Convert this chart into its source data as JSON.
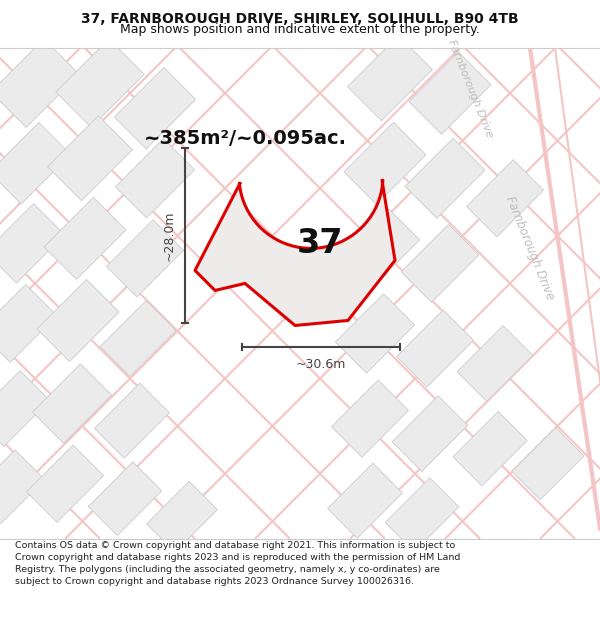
{
  "title_line1": "37, FARNBOROUGH DRIVE, SHIRLEY, SOLIHULL, B90 4TB",
  "title_line2": "Map shows position and indicative extent of the property.",
  "footer_text": "Contains OS data © Crown copyright and database right 2021. This information is subject to Crown copyright and database rights 2023 and is reproduced with the permission of HM Land Registry. The polygons (including the associated geometry, namely x, y co-ordinates) are subject to Crown copyright and database rights 2023 Ordnance Survey 100026316.",
  "area_text": "~385m²/~0.095ac.",
  "number_label": "37",
  "dim_width": "~30.6m",
  "dim_height": "~28.0m",
  "road_label_right": "Farnborough Drive",
  "road_label_top": "Farnborough Drive",
  "map_bg": "#ffffff",
  "plot_face": "#ebebeb",
  "plot_edge": "#cccccc",
  "road_line_color": "#f5c5c5",
  "road_curve_color": "#f5c5c5",
  "boundary_color": "#dd0000",
  "dim_color": "#444444",
  "text_color": "#111111",
  "road_text_color": "#c0bcbc",
  "title_fontsize": 10,
  "subtitle_fontsize": 9,
  "area_fontsize": 14,
  "number_fontsize": 24,
  "dim_fontsize": 9,
  "footer_fontsize": 6.8
}
